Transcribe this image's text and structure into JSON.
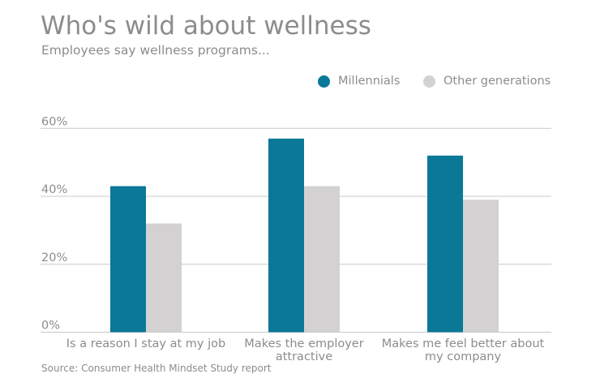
{
  "header": {
    "title": "Who's wild about wellness",
    "subtitle": "Employees say wellness programs..."
  },
  "source": "Source: Consumer Health Mindset Study report",
  "chart_data": {
    "type": "bar",
    "title": "Who's wild about wellness",
    "subtitle": "Employees say wellness programs...",
    "categories": [
      [
        "Is a reason I stay at my job"
      ],
      [
        "Makes the employer",
        "attractive"
      ],
      [
        "Makes me feel better about",
        "my company"
      ]
    ],
    "series": [
      {
        "name": "Millennials",
        "color": "#0b7898",
        "values": [
          43,
          57,
          52
        ]
      },
      {
        "name": "Other generations",
        "color": "#d3d1d2",
        "values": [
          32,
          43,
          39
        ]
      }
    ],
    "ylim": [
      0,
      60
    ],
    "yticks": [
      0,
      20,
      40,
      60
    ],
    "ytick_labels": [
      "0%",
      "20%",
      "40%",
      "60%"
    ],
    "grid": true,
    "legend": "top-right"
  }
}
